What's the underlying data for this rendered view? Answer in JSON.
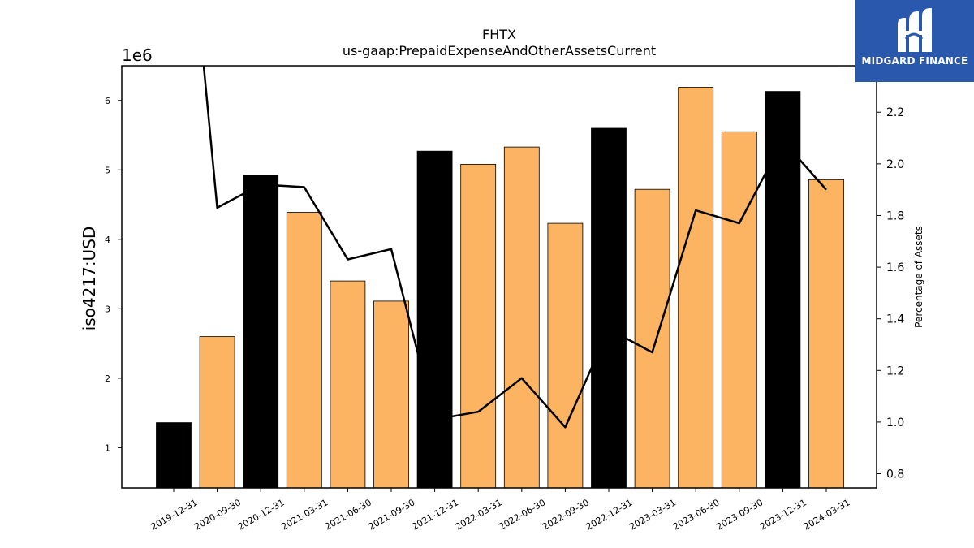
{
  "chart_data": {
    "type": "bar",
    "title": "FHTX",
    "subtitle": "us-gaap:PrepaidExpenseAndOtherAssetsCurrent",
    "ylabel": "iso4217:USD",
    "y2label": "Percentage of Assets",
    "y_offset_label": "1e6",
    "ylim": [
      0.42,
      6.5
    ],
    "y2lim": [
      0.745,
      2.38
    ],
    "yticks": [
      1,
      2,
      3,
      4,
      5,
      6
    ],
    "y2ticks": [
      0.8,
      1.0,
      1.2,
      1.4,
      1.6,
      1.8,
      2.0,
      2.2
    ],
    "categories": [
      "2019-12-31",
      "2020-09-30",
      "2020-12-31",
      "2021-03-31",
      "2021-06-30",
      "2021-09-30",
      "2021-12-31",
      "2022-03-31",
      "2022-06-30",
      "2022-09-30",
      "2022-12-31",
      "2023-03-31",
      "2023-06-30",
      "2023-09-30",
      "2023-12-31",
      "2024-03-31"
    ],
    "series": [
      {
        "kind": "bar",
        "values": [
          1.36,
          2.6,
          4.92,
          4.39,
          3.4,
          3.11,
          5.27,
          5.08,
          5.33,
          4.23,
          5.6,
          4.72,
          6.19,
          5.55,
          6.13,
          4.86
        ],
        "fiscal_year_end": [
          true,
          false,
          true,
          false,
          false,
          false,
          true,
          false,
          false,
          false,
          true,
          false,
          false,
          false,
          true,
          false
        ]
      },
      {
        "kind": "line",
        "axis": "right",
        "values": [
          3.6,
          1.83,
          1.92,
          1.91,
          1.63,
          1.67,
          1.01,
          1.04,
          1.17,
          0.98,
          1.36,
          1.27,
          1.82,
          1.77,
          2.09,
          1.9
        ]
      }
    ],
    "colors": {
      "bar_annual": "#000000",
      "bar_quarter": "#fdb462",
      "line": "#000000",
      "edge": "#000000"
    }
  },
  "logo": {
    "text": "MIDGARD FINANCE",
    "background": "#2a58ad"
  }
}
